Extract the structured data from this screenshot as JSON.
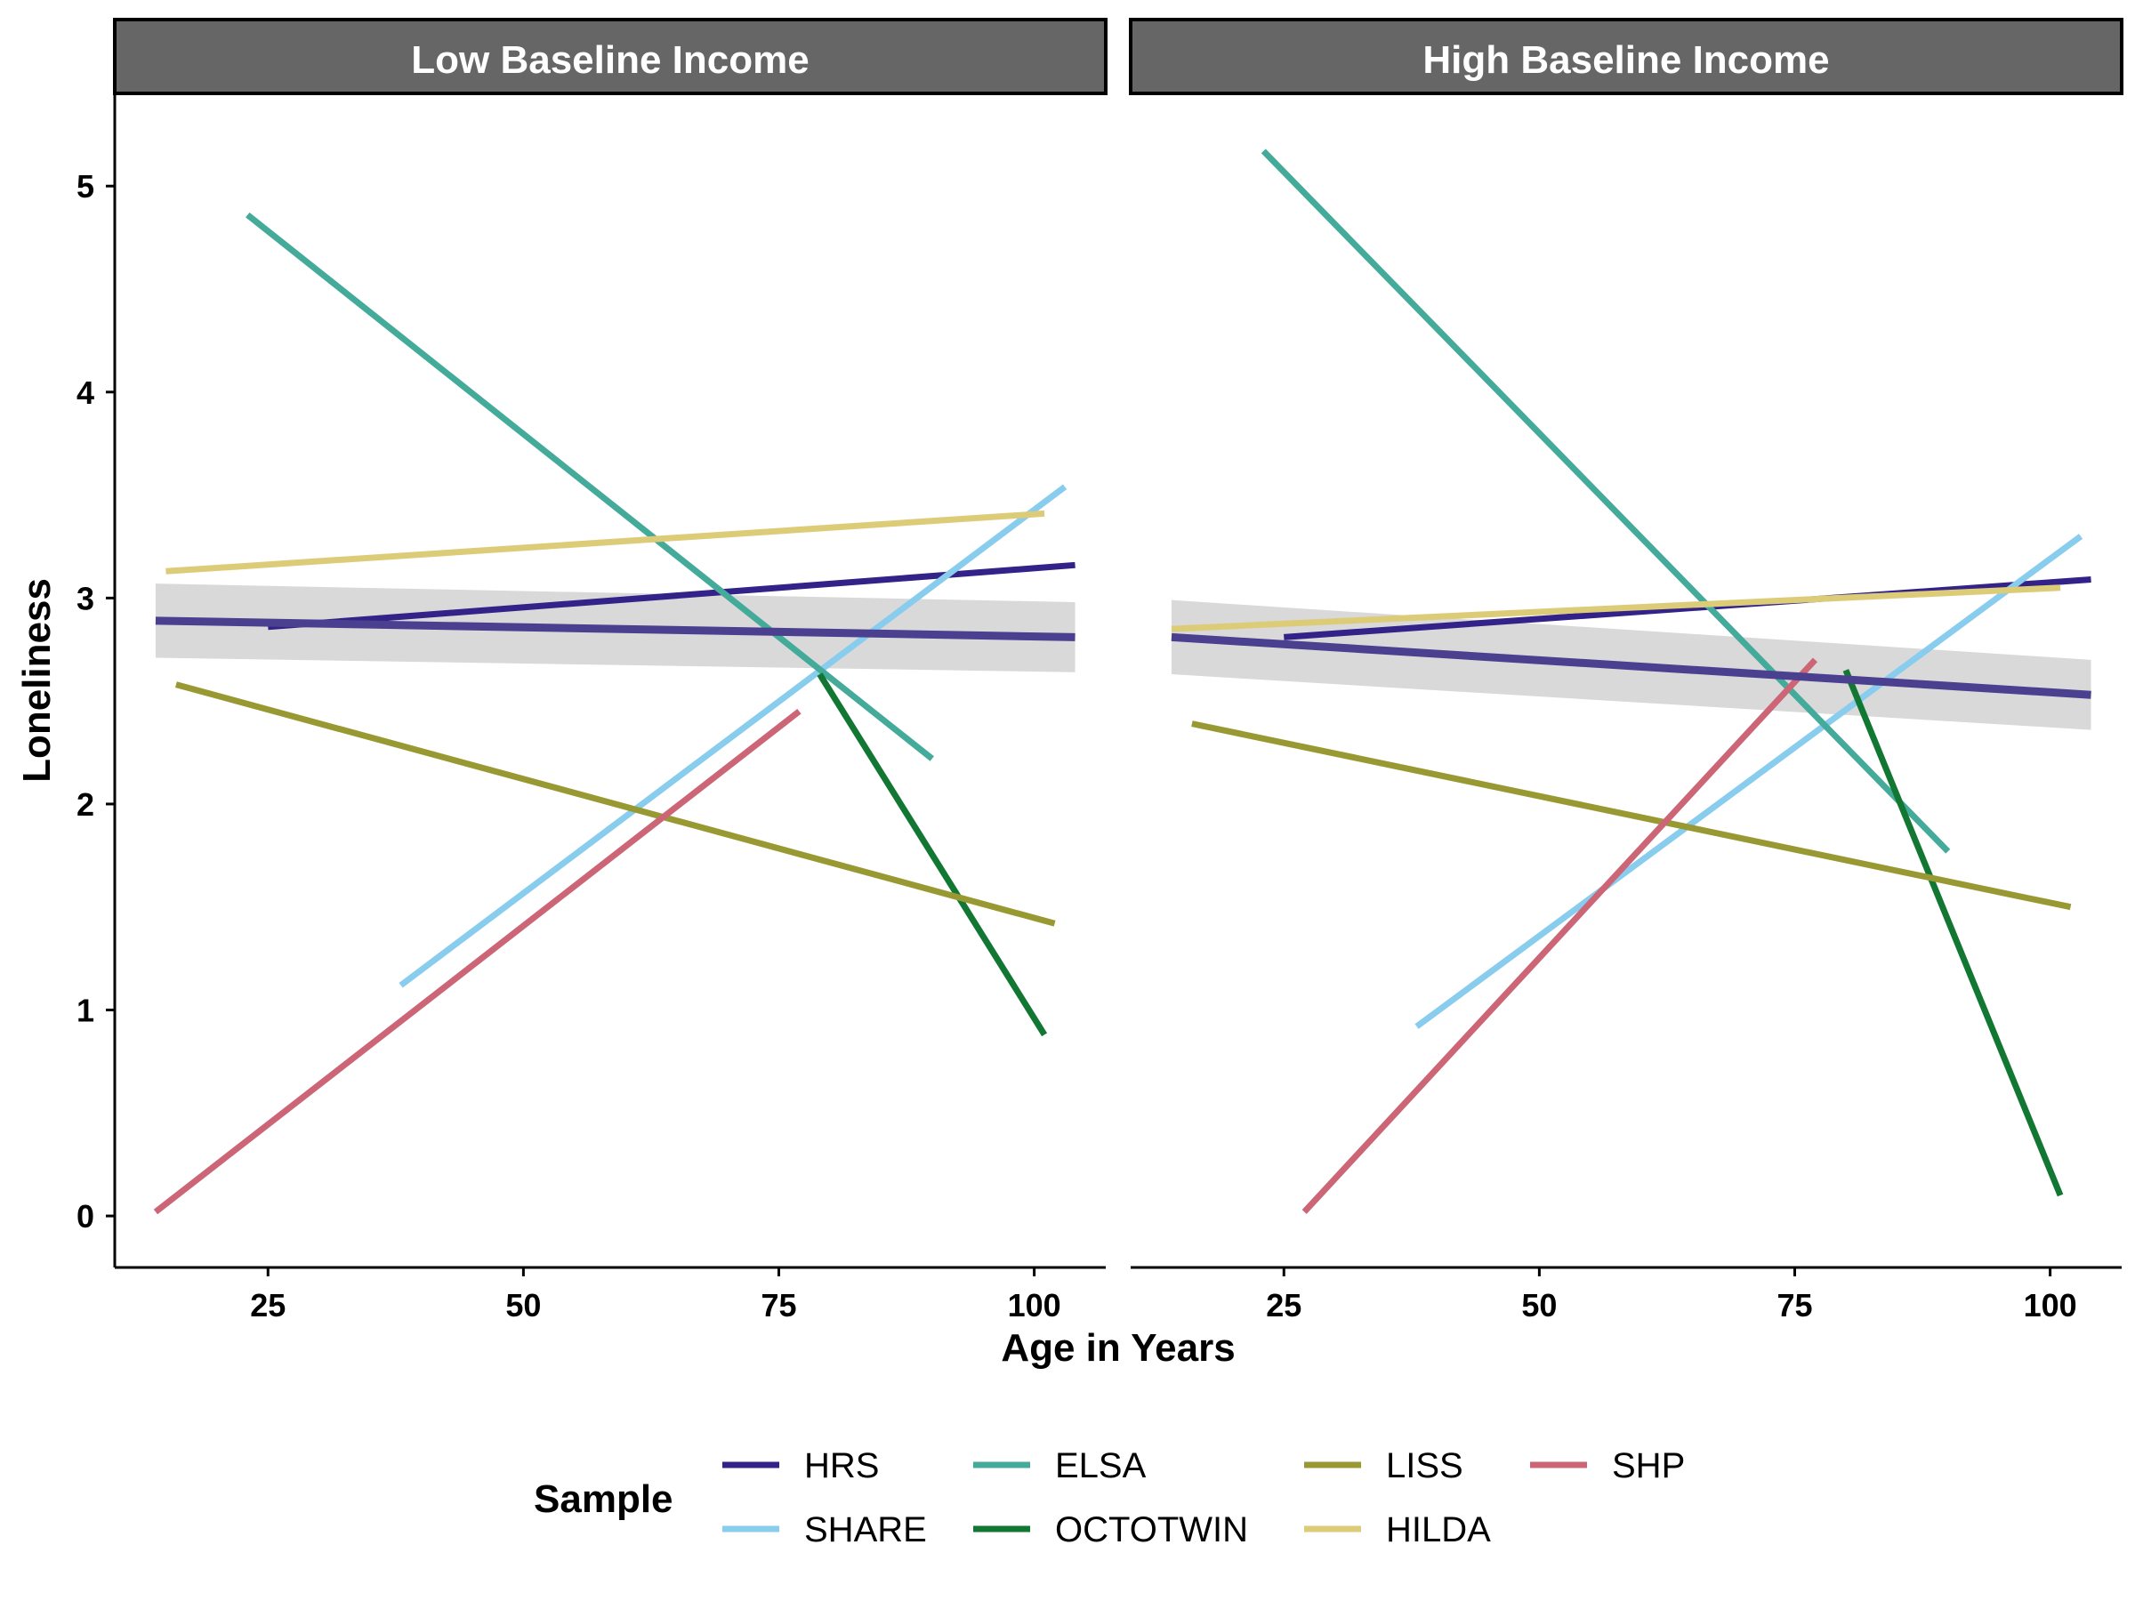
{
  "chart_data": {
    "type": "line",
    "xlabel": "Age in Years",
    "ylabel": "Loneliness",
    "xlim": [
      10,
      107
    ],
    "ylim": [
      -0.25,
      5.45
    ],
    "x_ticks": [
      25,
      50,
      75,
      100
    ],
    "y_ticks": [
      0,
      1,
      2,
      3,
      4,
      5
    ],
    "grid": false,
    "legend_title": "Sample",
    "legend_position": "bottom",
    "series": [
      {
        "name": "HRS",
        "color": "#332288"
      },
      {
        "name": "SHARE",
        "color": "#88CCEE"
      },
      {
        "name": "ELSA",
        "color": "#44AA99"
      },
      {
        "name": "OCTOTWIN",
        "color": "#117733"
      },
      {
        "name": "LISS",
        "color": "#999933"
      },
      {
        "name": "HILDA",
        "color": "#DDCC77"
      },
      {
        "name": "SHP",
        "color": "#CC6677"
      }
    ],
    "facets": [
      {
        "title": "Low Baseline Income",
        "lines": [
          {
            "series": "HRS",
            "x": [
              25,
              104
            ],
            "y": [
              2.86,
              3.16
            ]
          },
          {
            "series": "SHARE",
            "x": [
              38,
              103
            ],
            "y": [
              1.12,
              3.54
            ]
          },
          {
            "series": "ELSA",
            "x": [
              23,
              90
            ],
            "y": [
              4.86,
              2.22
            ]
          },
          {
            "series": "OCTOTWIN",
            "x": [
              79,
              101
            ],
            "y": [
              2.63,
              0.88
            ]
          },
          {
            "series": "LISS",
            "x": [
              16,
              102
            ],
            "y": [
              2.58,
              1.42
            ]
          },
          {
            "series": "HILDA",
            "x": [
              15,
              101
            ],
            "y": [
              3.13,
              3.41
            ]
          },
          {
            "series": "SHP",
            "x": [
              14,
              77
            ],
            "y": [
              0.02,
              2.45
            ]
          }
        ],
        "pooled": {
          "x": [
            14,
            104
          ],
          "y": [
            2.89,
            2.81
          ],
          "ci_lower": [
            2.71,
            2.64
          ],
          "ci_upper": [
            3.07,
            2.98
          ]
        }
      },
      {
        "title": "High Baseline Income",
        "lines": [
          {
            "series": "HRS",
            "x": [
              25,
              104
            ],
            "y": [
              2.81,
              3.09
            ]
          },
          {
            "series": "SHARE",
            "x": [
              38,
              103
            ],
            "y": [
              0.92,
              3.3
            ]
          },
          {
            "series": "ELSA",
            "x": [
              23,
              90
            ],
            "y": [
              5.17,
              1.77
            ]
          },
          {
            "series": "OCTOTWIN",
            "x": [
              80,
              101
            ],
            "y": [
              2.65,
              0.1
            ]
          },
          {
            "series": "LISS",
            "x": [
              16,
              102
            ],
            "y": [
              2.39,
              1.5
            ]
          },
          {
            "series": "HILDA",
            "x": [
              14,
              101
            ],
            "y": [
              2.85,
              3.05
            ]
          },
          {
            "series": "SHP",
            "x": [
              27,
              77
            ],
            "y": [
              0.02,
              2.7
            ]
          }
        ],
        "pooled": {
          "x": [
            14,
            104
          ],
          "y": [
            2.81,
            2.53
          ],
          "ci_lower": [
            2.63,
            2.36
          ],
          "ci_upper": [
            2.99,
            2.7
          ]
        }
      }
    ],
    "ci_color": "#D9D9D9",
    "pooled_color": "#4B3F8F",
    "strip_color": "#666666"
  }
}
